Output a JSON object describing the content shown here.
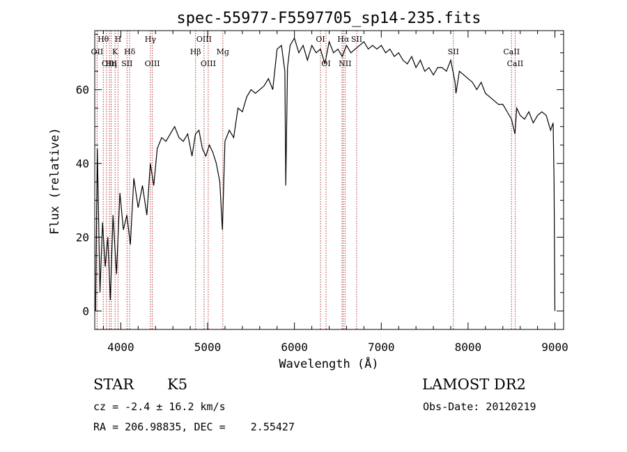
{
  "chart_data": {
    "type": "line",
    "title": "spec-55977-F5597705_sp14-235.fits",
    "xlabel": "Wavelength (Å)",
    "ylabel": "Flux (relative)",
    "xlim": [
      3700,
      9100
    ],
    "ylim": [
      -5,
      76
    ],
    "xticks": [
      4000,
      5000,
      6000,
      7000,
      8000,
      9000
    ],
    "yticks": [
      0,
      20,
      40,
      60
    ],
    "grid": false,
    "series": [
      {
        "x": [
          3710,
          3730,
          3760,
          3790,
          3820,
          3850,
          3880,
          3910,
          3950,
          3990,
          4030,
          4070,
          4110,
          4150,
          4200,
          4250,
          4300,
          4340,
          4380,
          4420,
          4470,
          4520,
          4570,
          4620,
          4670,
          4720,
          4770,
          4820,
          4860,
          4900,
          4940,
          4980,
          5020,
          5060,
          5100,
          5140,
          5170,
          5200,
          5250,
          5300,
          5350,
          5400,
          5450,
          5500,
          5550,
          5600,
          5650,
          5700,
          5750,
          5800,
          5850,
          5890,
          5900,
          5920,
          5950,
          6000,
          6050,
          6100,
          6150,
          6200,
          6250,
          6300,
          6350,
          6400,
          6450,
          6500,
          6550,
          6600,
          6650,
          6700,
          6750,
          6800,
          6850,
          6900,
          6950,
          7000,
          7050,
          7100,
          7150,
          7200,
          7250,
          7300,
          7350,
          7400,
          7450,
          7500,
          7550,
          7600,
          7650,
          7700,
          7750,
          7800,
          7850,
          7860,
          7900,
          7950,
          8000,
          8050,
          8100,
          8150,
          8200,
          8250,
          8300,
          8350,
          8400,
          8450,
          8500,
          8540,
          8560,
          8600,
          8650,
          8700,
          8750,
          8800,
          8850,
          8900,
          8950,
          8980,
          8990,
          9000
        ],
        "values": [
          0,
          44,
          5,
          24,
          12,
          20,
          3,
          26,
          10,
          32,
          22,
          26,
          18,
          36,
          28,
          34,
          26,
          40,
          34,
          44,
          47,
          46,
          48,
          50,
          47,
          46,
          48,
          42,
          48,
          49,
          44,
          42,
          45,
          43,
          40,
          35,
          22,
          46,
          49,
          47,
          55,
          54,
          58,
          60,
          59,
          60,
          61,
          63,
          60,
          71,
          72,
          65,
          34,
          66,
          72,
          74,
          70,
          72,
          68,
          72,
          70,
          71,
          67,
          73,
          70,
          71,
          69,
          72,
          70,
          71,
          72,
          73,
          71,
          72,
          71,
          72,
          70,
          71,
          69,
          70,
          68,
          67,
          69,
          66,
          68,
          65,
          66,
          64,
          66,
          66,
          65,
          68,
          62,
          59,
          65,
          64,
          63,
          62,
          60,
          62,
          59,
          58,
          57,
          56,
          56,
          54,
          52,
          48,
          55,
          53,
          52,
          54,
          51,
          53,
          54,
          53,
          49,
          51,
          35,
          0
        ]
      }
    ],
    "line_markers": [
      {
        "label": "Hθ",
        "x": 3798,
        "row": 0
      },
      {
        "label": "H",
        "x": 3968,
        "row": 0
      },
      {
        "label": "Hγ",
        "x": 4341,
        "row": 0
      },
      {
        "label": "OIII",
        "x": 4959,
        "row": 0
      },
      {
        "label": "OI",
        "x": 6300,
        "row": 0
      },
      {
        "label": "Hα",
        "x": 6563,
        "row": 0
      },
      {
        "label": "SII",
        "x": 6717,
        "row": 0
      },
      {
        "label": "OII",
        "x": 3727,
        "row": 1
      },
      {
        "label": "K",
        "x": 3934,
        "row": 1
      },
      {
        "label": "Hδ",
        "x": 4102,
        "row": 1
      },
      {
        "label": "Hβ",
        "x": 4861,
        "row": 1
      },
      {
        "label": "Mg",
        "x": 5175,
        "row": 1
      },
      {
        "label": "SII",
        "x": 7830,
        "row": 1
      },
      {
        "label": "CaII",
        "x": 8500,
        "row": 1
      },
      {
        "label": "OIII",
        "x": 3869,
        "row": 2
      },
      {
        "label": "Hη",
        "x": 3889,
        "row": 2
      },
      {
        "label": "SII",
        "x": 4072,
        "row": 2
      },
      {
        "label": "OIII",
        "x": 4363,
        "row": 2
      },
      {
        "label": "OIII",
        "x": 5007,
        "row": 2
      },
      {
        "label": "OI",
        "x": 6364,
        "row": 2
      },
      {
        "label": "NII",
        "x": 6583,
        "row": 2
      },
      {
        "label": "CaII",
        "x": 8542,
        "row": 2
      }
    ],
    "marker_lines_x": [
      3727,
      3798,
      3835,
      3869,
      3889,
      3934,
      3968,
      4072,
      4102,
      4341,
      4363,
      4861,
      4959,
      5007,
      5175,
      6300,
      6364,
      6548,
      6563,
      6583,
      6717,
      7830,
      8500,
      8542
    ]
  },
  "info": {
    "object_class": "STAR",
    "subclass": "K5",
    "survey": "LAMOST DR2",
    "cz_line": "cz = -2.4 ± 16.2 km/s",
    "obs_date_line": "Obs-Date: 20120219",
    "coords_line": "RA = 206.98835, DEC =    2.55427"
  }
}
